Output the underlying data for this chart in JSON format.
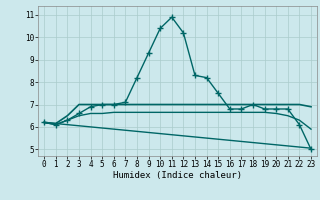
{
  "title": "",
  "xlabel": "Humidex (Indice chaleur)",
  "ylabel": "",
  "bg_color": "#cce8ec",
  "grid_color": "#aacccc",
  "line_color": "#006666",
  "xlim": [
    -0.5,
    23.5
  ],
  "ylim": [
    4.7,
    11.4
  ],
  "yticks": [
    5,
    6,
    7,
    8,
    9,
    10,
    11
  ],
  "xticks": [
    0,
    1,
    2,
    3,
    4,
    5,
    6,
    7,
    8,
    9,
    10,
    11,
    12,
    13,
    14,
    15,
    16,
    17,
    18,
    19,
    20,
    21,
    22,
    23
  ],
  "series": [
    {
      "x": [
        0,
        1,
        2,
        3,
        4,
        5,
        6,
        7,
        8,
        9,
        10,
        11,
        12,
        13,
        14,
        15,
        16,
        17,
        18,
        19,
        20,
        21,
        22,
        23
      ],
      "y": [
        6.2,
        6.1,
        6.3,
        6.6,
        6.9,
        7.0,
        7.0,
        7.1,
        8.2,
        9.3,
        10.4,
        10.9,
        10.2,
        8.3,
        8.2,
        7.5,
        6.8,
        6.8,
        7.0,
        6.8,
        6.8,
        6.8,
        6.1,
        5.0
      ],
      "marker": "+",
      "linewidth": 1.0,
      "markersize": 4
    },
    {
      "x": [
        0,
        1,
        2,
        3,
        4,
        5,
        6,
        7,
        8,
        9,
        10,
        11,
        12,
        13,
        14,
        15,
        16,
        17,
        18,
        19,
        20,
        21,
        22,
        23
      ],
      "y": [
        6.2,
        6.15,
        6.5,
        7.0,
        7.0,
        7.0,
        7.0,
        7.0,
        7.0,
        7.0,
        7.0,
        7.0,
        7.0,
        7.0,
        7.0,
        7.0,
        7.0,
        7.0,
        7.0,
        7.0,
        7.0,
        7.0,
        7.0,
        6.9
      ],
      "marker": null,
      "linewidth": 1.2,
      "markersize": 0
    },
    {
      "x": [
        0,
        1,
        2,
        3,
        4,
        5,
        6,
        7,
        8,
        9,
        10,
        11,
        12,
        13,
        14,
        15,
        16,
        17,
        18,
        19,
        20,
        21,
        22,
        23
      ],
      "y": [
        6.2,
        6.1,
        6.3,
        6.5,
        6.6,
        6.6,
        6.65,
        6.65,
        6.65,
        6.65,
        6.65,
        6.65,
        6.65,
        6.65,
        6.65,
        6.65,
        6.65,
        6.65,
        6.65,
        6.65,
        6.6,
        6.5,
        6.3,
        5.9
      ],
      "marker": null,
      "linewidth": 1.0,
      "markersize": 0
    },
    {
      "x": [
        0,
        1,
        2,
        3,
        4,
        5,
        6,
        7,
        8,
        9,
        10,
        11,
        12,
        13,
        14,
        15,
        16,
        17,
        18,
        19,
        20,
        21,
        22,
        23
      ],
      "y": [
        6.2,
        6.15,
        6.1,
        6.05,
        6.0,
        5.95,
        5.9,
        5.85,
        5.8,
        5.75,
        5.7,
        5.65,
        5.6,
        5.55,
        5.5,
        5.45,
        5.4,
        5.35,
        5.3,
        5.25,
        5.2,
        5.15,
        5.1,
        5.05
      ],
      "marker": null,
      "linewidth": 1.0,
      "markersize": 0
    }
  ]
}
